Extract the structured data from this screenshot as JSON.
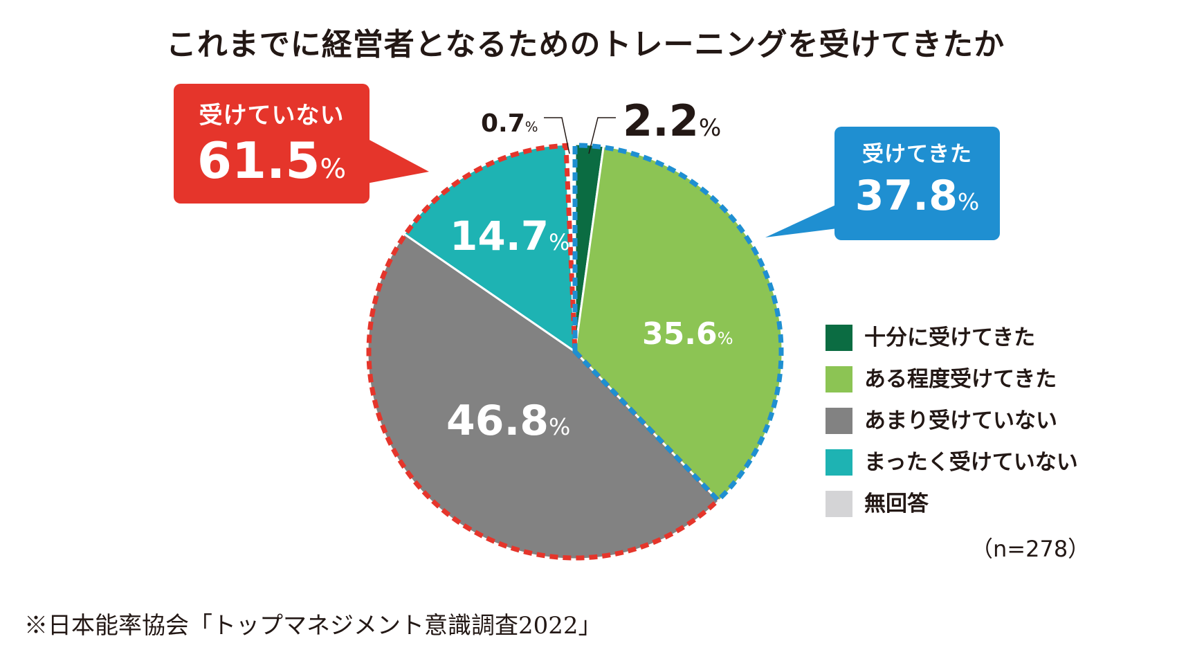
{
  "chart_data": {
    "type": "pie",
    "title": "これまでに経営者となるためのトレーニングを受けてきたか",
    "categories": [
      "十分に受けてきた",
      "ある程度受けてきた",
      "あまり受けていない",
      "まったく受けていない",
      "無回答"
    ],
    "values": [
      2.2,
      35.6,
      46.8,
      14.7,
      0.7
    ],
    "unit": "%",
    "colors": [
      "#0b6c42",
      "#8cc454",
      "#828282",
      "#1eb3b3",
      "#d4d4d6"
    ],
    "data_labels": [
      "2.2",
      "35.6",
      "46.8",
      "14.7",
      "0.7"
    ],
    "start": "12 o'clock",
    "direction": "clockwise",
    "legend_position": "right",
    "groups": [
      {
        "label": "受けてきた",
        "value": "37.8",
        "members": [
          0,
          1
        ],
        "color": "#1f8fd1"
      },
      {
        "label": "受けていない",
        "value": "61.5",
        "members": [
          2,
          3
        ],
        "color": "#e5352b"
      }
    ],
    "sample_size": "（n=278）",
    "source": "※日本能率協会「トップマネジメント意識調査2022」"
  },
  "percent_sign": "%"
}
